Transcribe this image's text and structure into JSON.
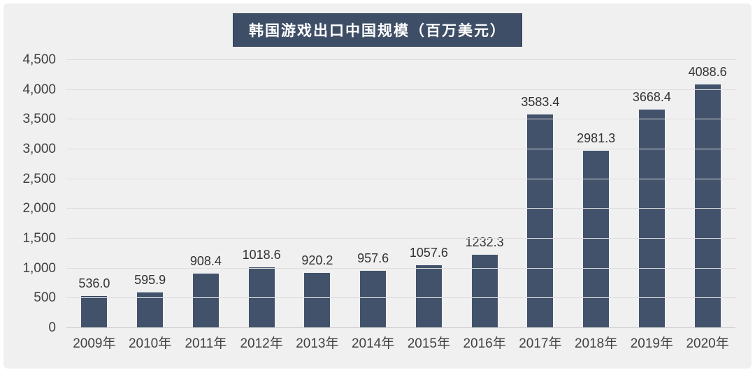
{
  "chart_data": {
    "type": "bar",
    "title": "韩国游戏出口中国规模（百万美元）",
    "xlabel": "",
    "ylabel": "",
    "unit": "百万美元",
    "categories": [
      "2009年",
      "2010年",
      "2011年",
      "2012年",
      "2013年",
      "2014年",
      "2015年",
      "2016年",
      "2017年",
      "2018年",
      "2019年",
      "2020年"
    ],
    "values": [
      536.0,
      595.9,
      908.4,
      1018.6,
      920.2,
      957.6,
      1057.6,
      1232.3,
      3583.4,
      2981.3,
      3668.4,
      4088.6
    ],
    "value_labels": [
      "536.0",
      "595.9",
      "908.4",
      "1018.6",
      "920.2",
      "957.6",
      "1057.6",
      "1232.3",
      "3583.4",
      "2981.3",
      "3668.4",
      "4088.6"
    ],
    "ylim": [
      0,
      4500
    ],
    "y_ticks": [
      0,
      500,
      1000,
      1500,
      2000,
      2500,
      3000,
      3500,
      4000,
      4500
    ],
    "y_tick_labels": [
      "0",
      "500",
      "1,000",
      "1,500",
      "2,000",
      "2,500",
      "3,000",
      "3,500",
      "4,000",
      "4,500"
    ],
    "grid": true,
    "legend": "none",
    "colors": {
      "bar": "#42526b",
      "panel_background": "#f0f0f0",
      "gridline": "#dedede",
      "axis_baseline": "#cfcfcf",
      "tick_text": "#404040",
      "value_text": "#333333",
      "title_background": "#3e4e66",
      "title_border": "#32415a",
      "title_text": "#ffffff"
    }
  }
}
